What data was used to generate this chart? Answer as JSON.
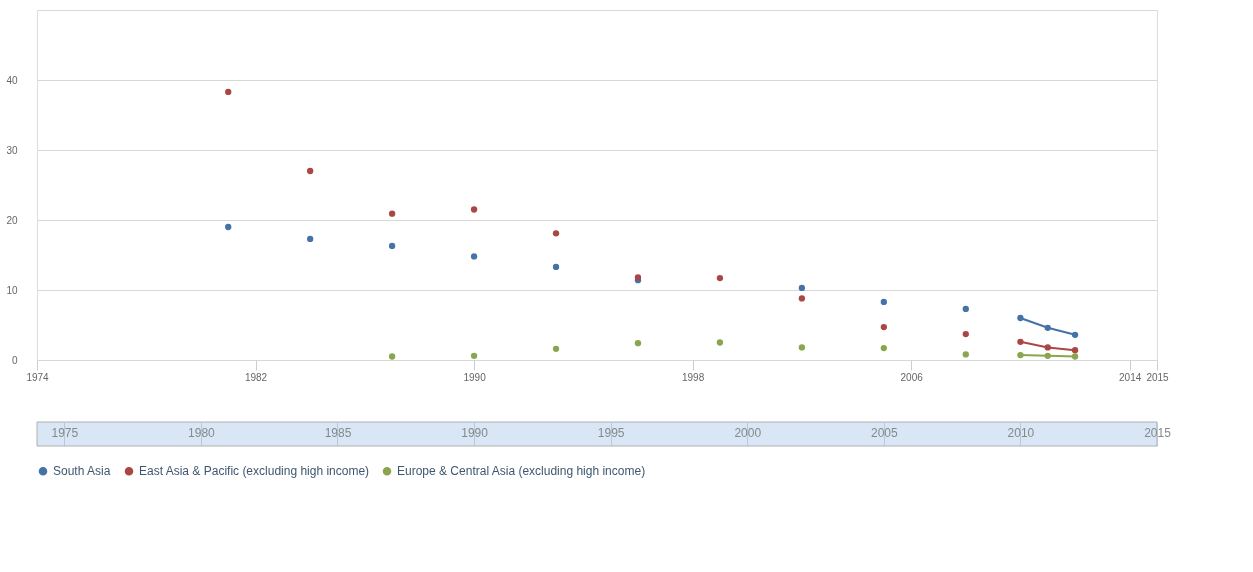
{
  "chart_data": {
    "type": "line",
    "marker": "circle",
    "line_style": "solid",
    "grid": "y",
    "legend": "bottom",
    "x": [
      1981,
      1982,
      1983,
      1984,
      1985,
      1986,
      1987,
      1988,
      1989,
      1990,
      1991,
      1992,
      1993,
      1994,
      1995,
      1996,
      1997,
      1998,
      1999,
      2000,
      2001,
      2002,
      2003,
      2004,
      2005,
      2006,
      2007,
      2008,
      2009,
      2010,
      2011,
      2012
    ],
    "xlim": [
      1974,
      2015
    ],
    "xticks": [
      1974,
      1982,
      1990,
      1998,
      2006,
      2014,
      2015
    ],
    "x2lim": [
      1974,
      2015
    ],
    "x2ticks": [
      1975,
      1980,
      1985,
      1990,
      1995,
      2000,
      2005,
      2010,
      2015
    ],
    "ylim": [
      0,
      50
    ],
    "yticks": [
      0,
      10,
      20,
      30,
      40,
      {
        "value": 50,
        "label": null
      }
    ],
    "series": [
      {
        "name": "South Asia",
        "color": "#4572a7",
        "values": [
          19.0,
          null,
          null,
          17.3,
          null,
          null,
          16.3,
          null,
          null,
          14.8,
          null,
          null,
          13.3,
          null,
          null,
          11.4,
          null,
          null,
          null,
          null,
          null,
          10.3,
          null,
          null,
          8.3,
          null,
          null,
          7.3,
          null,
          6.0,
          4.6,
          3.6
        ]
      },
      {
        "name": "East Asia & Pacific (excluding high income)",
        "color": "#aa4643",
        "values": [
          38.3,
          null,
          null,
          27.0,
          null,
          null,
          20.9,
          null,
          null,
          21.5,
          null,
          null,
          18.1,
          null,
          null,
          11.8,
          null,
          null,
          11.7,
          null,
          null,
          8.8,
          null,
          null,
          4.7,
          null,
          null,
          3.7,
          null,
          2.6,
          1.8,
          1.4
        ]
      },
      {
        "name": "Europe & Central Asia (excluding high income)",
        "color": "#89a54e",
        "values": [
          null,
          null,
          null,
          null,
          null,
          null,
          0.5,
          null,
          null,
          0.6,
          null,
          null,
          1.6,
          null,
          null,
          2.4,
          null,
          null,
          2.5,
          null,
          null,
          1.8,
          null,
          null,
          1.7,
          null,
          null,
          0.8,
          null,
          0.7,
          0.6,
          0.5
        ]
      }
    ]
  }
}
